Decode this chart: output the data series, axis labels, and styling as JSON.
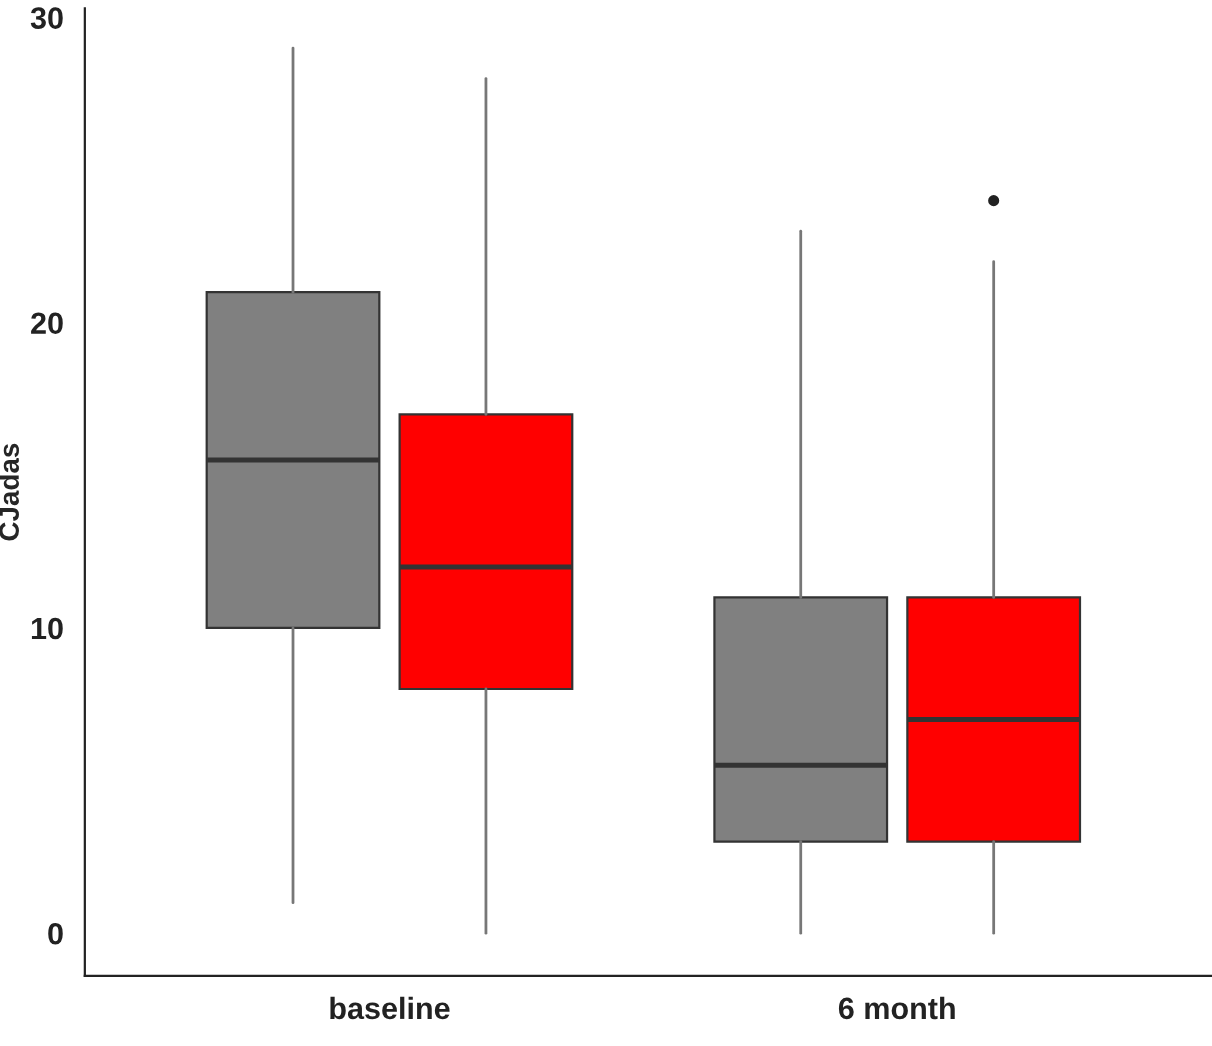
{
  "chart_data": {
    "type": "box",
    "ylabel": "CJadas",
    "categories": [
      "baseline",
      "6 month"
    ],
    "ylim": [
      -1.4,
      30.3
    ],
    "yticks": [
      0,
      10,
      20,
      30
    ],
    "grid": false,
    "series": [
      {
        "color": "#808080",
        "boxes": [
          {
            "low": 1,
            "q1": 10,
            "median": 15.5,
            "q3": 21,
            "high": 29
          },
          {
            "low": 0,
            "q1": 3,
            "median": 5.5,
            "q3": 11,
            "high": 23
          }
        ]
      },
      {
        "color": "#ff0000",
        "boxes": [
          {
            "low": 0,
            "q1": 8,
            "median": 12,
            "q3": 17,
            "high": 28
          },
          {
            "low": 0,
            "q1": 3,
            "median": 7,
            "q3": 11,
            "high": 22,
            "outliers": [
              24
            ]
          }
        ]
      }
    ]
  }
}
